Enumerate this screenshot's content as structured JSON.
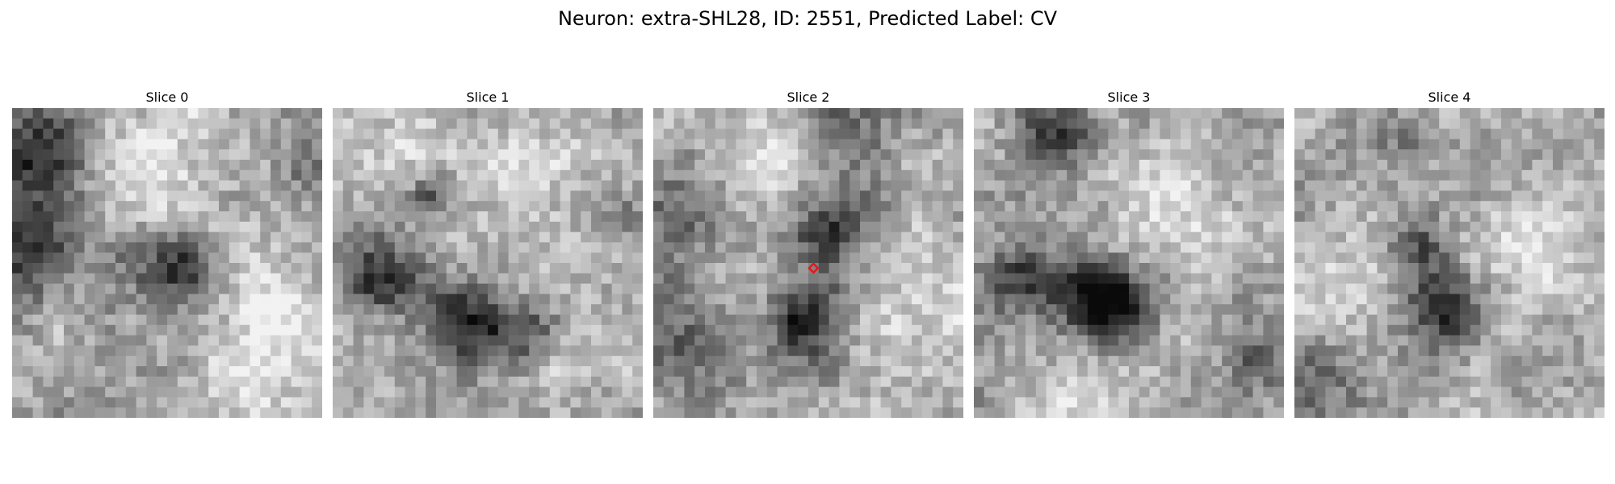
{
  "figure": {
    "title": "Neuron: extra-SHL28, ID: 2551, Predicted Label: CV"
  },
  "marker": {
    "slice_index": 2,
    "shape": "diamond",
    "color": "#e8141c",
    "grid_col": 15,
    "grid_row": 15
  },
  "grid": {
    "cells": 30,
    "colormap": "gray"
  },
  "slices": [
    {
      "label": "Slice 0",
      "blobs": [
        {
          "c": 2,
          "r": 4,
          "s": 3.4,
          "d": 0.48
        },
        {
          "c": 1,
          "r": 13,
          "s": 3.0,
          "d": 0.5
        },
        {
          "c": 16,
          "r": 15,
          "s": 2.4,
          "d": 0.55
        },
        {
          "c": 28,
          "r": 5,
          "s": 2.2,
          "d": 0.25
        },
        {
          "c": 10,
          "r": 14,
          "s": 2.5,
          "d": 0.12
        }
      ],
      "light": [
        {
          "c": 15,
          "r": 5,
          "s": 4.5,
          "l": 0.22
        },
        {
          "c": 24,
          "r": 19,
          "s": 4.0,
          "l": 0.22
        },
        {
          "c": 22,
          "r": 28,
          "s": 4.0,
          "l": 0.18
        }
      ]
    },
    {
      "label": "Slice 1",
      "blobs": [
        {
          "c": 4,
          "r": 16,
          "s": 2.6,
          "d": 0.5
        },
        {
          "c": 9,
          "r": 8,
          "s": 1.4,
          "d": 0.35
        },
        {
          "c": 12,
          "r": 20,
          "s": 2.6,
          "d": 0.42
        },
        {
          "c": 17,
          "r": 21,
          "s": 2.4,
          "d": 0.4
        },
        {
          "c": 28,
          "r": 10,
          "s": 1.5,
          "d": 0.2
        }
      ],
      "light": [
        {
          "c": 18,
          "r": 8,
          "s": 4.0,
          "l": 0.2
        },
        {
          "c": 24,
          "r": 24,
          "s": 3.0,
          "l": 0.15
        },
        {
          "c": 5,
          "r": 4,
          "s": 3.0,
          "l": 0.15
        }
      ]
    },
    {
      "label": "Slice 2",
      "blobs": [
        {
          "c": 17,
          "r": 11,
          "s": 2.8,
          "d": 0.42
        },
        {
          "c": 14,
          "r": 20,
          "s": 2.4,
          "d": 0.55
        },
        {
          "c": 3,
          "r": 10,
          "s": 3.2,
          "d": 0.28
        },
        {
          "c": 3,
          "r": 22,
          "s": 3.5,
          "d": 0.3
        },
        {
          "c": 18,
          "r": 1,
          "s": 3.0,
          "d": 0.25
        }
      ],
      "light": [
        {
          "c": 10,
          "r": 3,
          "s": 3.5,
          "l": 0.18
        },
        {
          "c": 25,
          "r": 18,
          "s": 4.0,
          "l": 0.16
        }
      ]
    },
    {
      "label": "Slice 3",
      "blobs": [
        {
          "c": 8,
          "r": 2,
          "s": 2.5,
          "d": 0.45
        },
        {
          "c": 4,
          "r": 16,
          "s": 2.6,
          "d": 0.45
        },
        {
          "c": 10,
          "r": 17,
          "s": 2.4,
          "d": 0.5
        },
        {
          "c": 14,
          "r": 19,
          "s": 2.4,
          "d": 0.55
        },
        {
          "c": 27,
          "r": 24,
          "s": 2.0,
          "d": 0.3
        }
      ],
      "light": [
        {
          "c": 18,
          "r": 8,
          "s": 4.0,
          "l": 0.22
        },
        {
          "c": 12,
          "r": 27,
          "s": 4.0,
          "l": 0.18
        },
        {
          "c": 24,
          "r": 12,
          "s": 3.0,
          "l": 0.15
        }
      ]
    },
    {
      "label": "Slice 4",
      "blobs": [
        {
          "c": 14,
          "r": 19,
          "s": 2.6,
          "d": 0.5
        },
        {
          "c": 11,
          "r": 13,
          "s": 2.2,
          "d": 0.3
        },
        {
          "c": 10,
          "r": 3,
          "s": 2.5,
          "d": 0.25
        },
        {
          "c": 2,
          "r": 26,
          "s": 3.0,
          "d": 0.2
        }
      ],
      "light": [
        {
          "c": 23,
          "r": 13,
          "s": 4.5,
          "l": 0.2
        },
        {
          "c": 5,
          "r": 15,
          "s": 3.5,
          "l": 0.15
        }
      ]
    }
  ]
}
